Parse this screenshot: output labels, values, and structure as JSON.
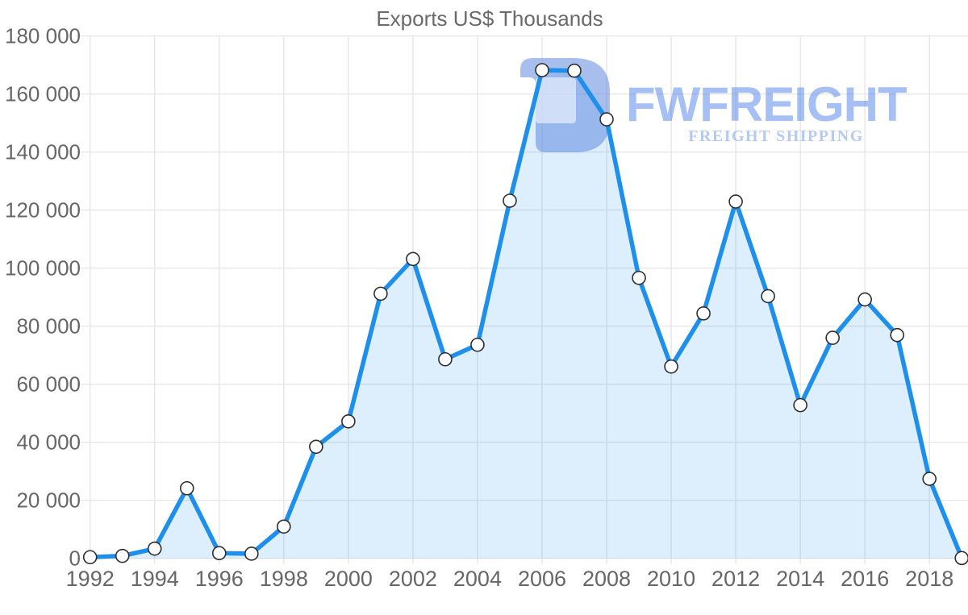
{
  "title": "Exports US$ Thousands",
  "watermark": {
    "brand": "FWFREIGHT",
    "tagline": "FREIGHT SHIPPING",
    "mark_color": "#5b87de",
    "mark_opacity": 0.53,
    "window_opacity": 0.55,
    "brand_color": "#4a7ce9",
    "brand_opacity": 0.49,
    "tagline_color": "#4a7ce9",
    "tagline_opacity": 0.41
  },
  "colors": {
    "line": "#1e8fea",
    "area": "rgba(30,144,234,0.15)",
    "grid": "#e2e2e2",
    "label": "#676767",
    "title": "#6a6a6a",
    "marker_fill": "#ffffff",
    "marker_stroke": "#2e2e2e"
  },
  "chart_data": {
    "type": "area",
    "title": "Exports US$ Thousands",
    "x": [
      1992,
      1993,
      1994,
      1995,
      1996,
      1997,
      1998,
      1999,
      2000,
      2001,
      2002,
      2003,
      2004,
      2005,
      2006,
      2007,
      2008,
      2009,
      2010,
      2011,
      2012,
      2013,
      2014,
      2015,
      2016,
      2017,
      2018,
      2019
    ],
    "values": [
      400,
      850,
      3350,
      24150,
      1800,
      1600,
      10950,
      38450,
      47200,
      91200,
      103150,
      68600,
      73600,
      123250,
      168250,
      168050,
      151300,
      96650,
      66100,
      84400,
      122950,
      90350,
      52800,
      76000,
      89200,
      76950,
      27400,
      100
    ],
    "series_name": "Exports US$ Thousands",
    "xlabel": "",
    "ylabel": "",
    "ylim": [
      0,
      180000
    ],
    "ytick_step": 20000,
    "ytick_labels": [
      "0",
      "20 000",
      "40 000",
      "60 000",
      "80 000",
      "100 000",
      "120 000",
      "140 000",
      "160 000",
      "180 000"
    ],
    "xtick_years": [
      1992,
      1994,
      1996,
      1998,
      2000,
      2002,
      2004,
      2006,
      2008,
      2010,
      2012,
      2014,
      2016,
      2018
    ],
    "grid": true,
    "legend": false,
    "marker": "circle"
  }
}
